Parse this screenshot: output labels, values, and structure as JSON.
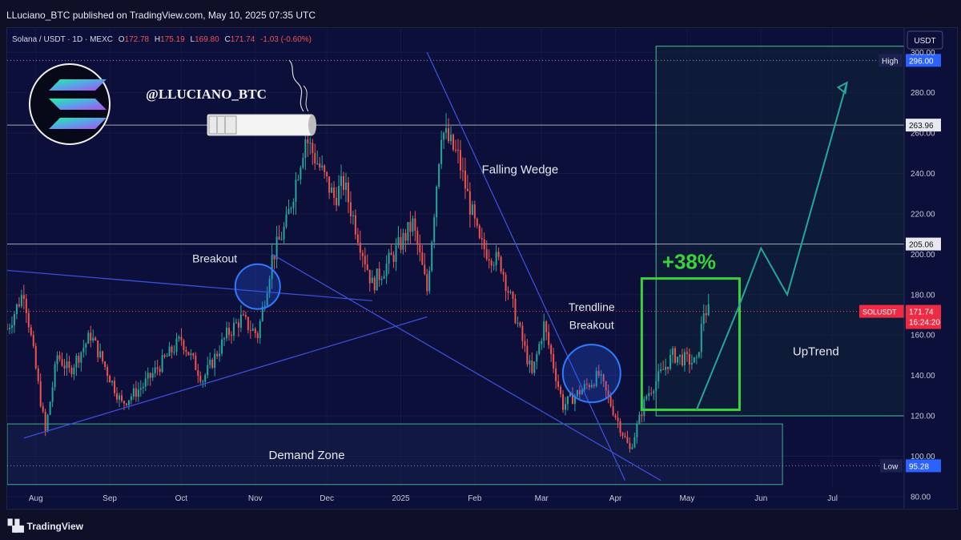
{
  "header": {
    "publisher": "LLuciano_BTC published on TradingView.com, May 10, 2025 07:35 UTC"
  },
  "footer": {
    "brand": "TradingView"
  },
  "chart_data": {
    "type": "candlestick",
    "symbol_line": {
      "title": "Solana / USDT · 1D · MEXC",
      "o_label": "O",
      "o": "172.78",
      "h_label": "H",
      "h": "175.19",
      "l_label": "L",
      "l": "169.80",
      "c_label": "C",
      "c": "171.74",
      "change": "-1.03 (-0.60%)"
    },
    "currency": "USDT",
    "y_ticks": [
      "300.00",
      "280.00",
      "260.00",
      "240.00",
      "220.00",
      "200.00",
      "180.00",
      "160.00",
      "140.00",
      "120.00",
      "100.00",
      "80.00"
    ],
    "y_tick_values": [
      300,
      280,
      260,
      240,
      220,
      200,
      180,
      160,
      140,
      120,
      100,
      80
    ],
    "ylim": [
      74,
      312
    ],
    "x_ticks": [
      "Aug",
      "Sep",
      "Oct",
      "Nov",
      "Dec",
      "2025",
      "Feb",
      "Mar",
      "Apr",
      "May",
      "Jun",
      "Jul"
    ],
    "x_tick_dates": [
      "2024-08-01",
      "2024-09-01",
      "2024-10-01",
      "2024-11-01",
      "2024-12-01",
      "2025-01-01",
      "2025-02-01",
      "2025-03-01",
      "2025-04-01",
      "2025-05-01",
      "2025-06-01",
      "2025-07-01"
    ],
    "x_range": [
      "2024-07-20",
      "2025-07-31"
    ],
    "price_anchors": [
      {
        "date": "2024-07-20",
        "price": 163
      },
      {
        "date": "2024-07-27",
        "price": 182
      },
      {
        "date": "2024-08-05",
        "price": 112
      },
      {
        "date": "2024-08-10",
        "price": 150
      },
      {
        "date": "2024-08-15",
        "price": 142
      },
      {
        "date": "2024-08-24",
        "price": 160
      },
      {
        "date": "2024-09-06",
        "price": 126
      },
      {
        "date": "2024-09-15",
        "price": 135
      },
      {
        "date": "2024-10-01",
        "price": 158
      },
      {
        "date": "2024-10-10",
        "price": 138
      },
      {
        "date": "2024-10-20",
        "price": 160
      },
      {
        "date": "2024-10-26",
        "price": 168
      },
      {
        "date": "2024-11-02",
        "price": 160
      },
      {
        "date": "2024-11-08",
        "price": 198
      },
      {
        "date": "2024-11-14",
        "price": 215
      },
      {
        "date": "2024-11-22",
        "price": 258
      },
      {
        "date": "2024-12-04",
        "price": 228
      },
      {
        "date": "2024-12-08",
        "price": 235
      },
      {
        "date": "2024-12-20",
        "price": 185
      },
      {
        "date": "2024-12-28",
        "price": 198
      },
      {
        "date": "2025-01-06",
        "price": 215
      },
      {
        "date": "2025-01-12",
        "price": 182
      },
      {
        "date": "2025-01-18",
        "price": 262
      },
      {
        "date": "2025-01-25",
        "price": 248
      },
      {
        "date": "2025-02-03",
        "price": 205
      },
      {
        "date": "2025-02-12",
        "price": 195
      },
      {
        "date": "2025-02-25",
        "price": 140
      },
      {
        "date": "2025-03-02",
        "price": 165
      },
      {
        "date": "2025-03-10",
        "price": 125
      },
      {
        "date": "2025-03-25",
        "price": 140
      },
      {
        "date": "2025-04-07",
        "price": 103
      },
      {
        "date": "2025-04-14",
        "price": 130
      },
      {
        "date": "2025-04-25",
        "price": 150
      },
      {
        "date": "2025-05-05",
        "price": 146
      },
      {
        "date": "2025-05-08",
        "price": 172
      },
      {
        "date": "2025-05-10",
        "price": 171.74
      }
    ],
    "price_levels": [
      {
        "label": "263.96",
        "value": 263.96
      },
      {
        "label": "205.06",
        "value": 205.06
      }
    ],
    "high_marker": {
      "label": "High",
      "value": "296.00",
      "price": 296
    },
    "low_marker": {
      "label": "Low",
      "value": "95.28",
      "price": 95.28
    },
    "current_marker": {
      "symbol": "SOLUSDT",
      "value": "171.74",
      "countdown": "16:24:20",
      "price": 171.74
    },
    "demand_zone": {
      "label": "Demand Zone",
      "top": 116,
      "bottom": 86,
      "start": "2024-07-20",
      "end": "2025-06-10"
    },
    "annotations": {
      "handle": "@LLUCIANO_BTC",
      "breakout": "Breakout",
      "falling_wedge": "Falling Wedge",
      "trendline_breakout_line1": "Trendline",
      "trendline_breakout_line2": "Breakout",
      "gain": "+38%",
      "uptrend": "UpTrend"
    },
    "colors": {
      "background": "#0c0f3a",
      "up_candle": "#26a69a",
      "down_candle": "#ef5350",
      "trendline": "#3b4fd8",
      "projection": "#26a69a",
      "gain_box": "#39d23b",
      "level_line": "#c9ccd8"
    }
  }
}
